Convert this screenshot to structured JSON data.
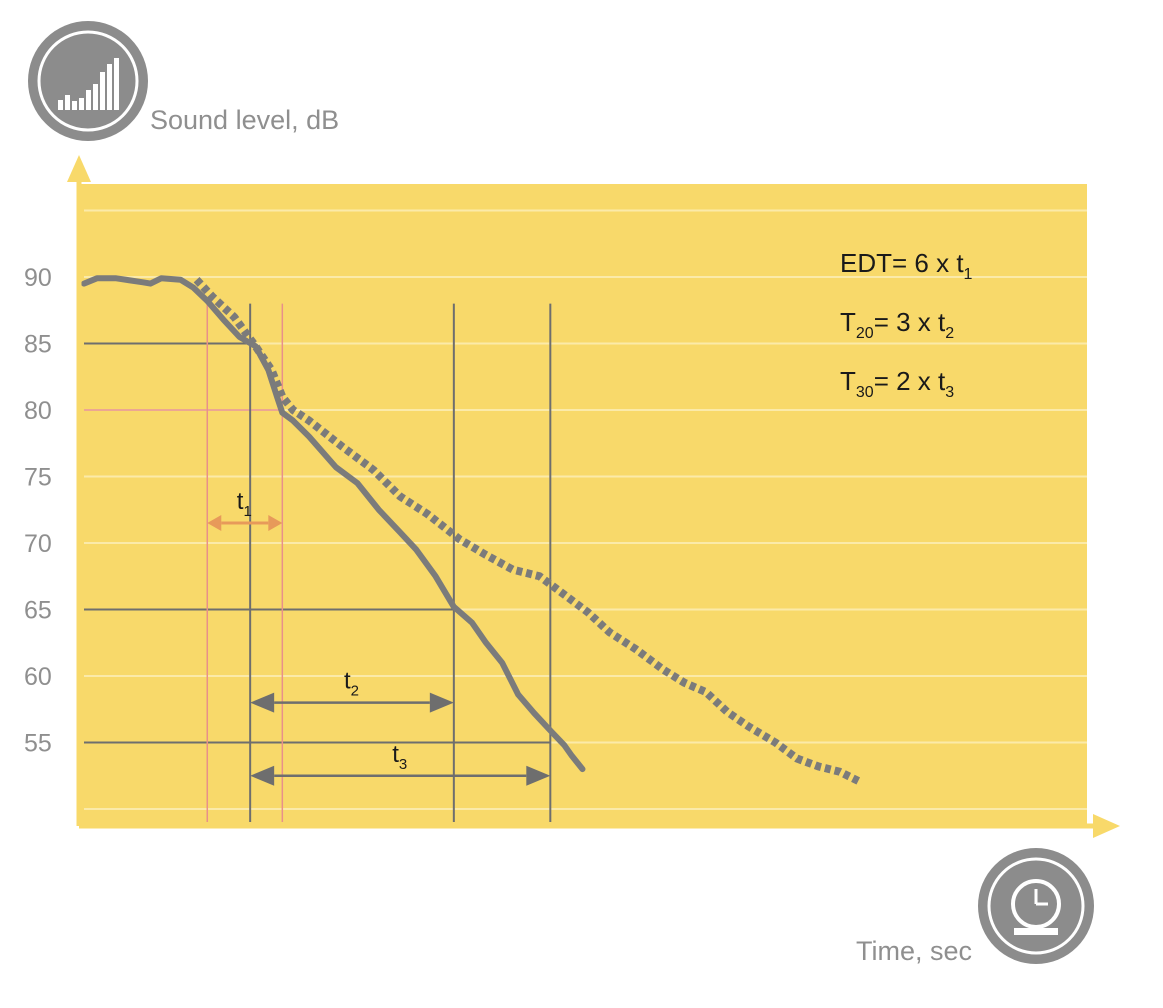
{
  "chart_data": {
    "type": "line",
    "ylabel": "Sound level, dB",
    "xlabel": "Time, sec",
    "y_ticks": [
      "90",
      "85",
      "80",
      "75",
      "70",
      "65",
      "60",
      "55"
    ],
    "ylim": [
      50,
      95
    ],
    "xlim": [
      0,
      7.5
    ],
    "grid": true,
    "colors": {
      "background": "#f8d96a",
      "grid": "#fbeaa9",
      "curve": "#7b7b7b",
      "axis": "#f8d96a",
      "reference_red": "#e8908a",
      "t1_arrow": "#e79a5a",
      "interval_arrow": "#6e6e6e",
      "label_gray": "#8f8f8f"
    },
    "series": [
      {
        "style": "solid",
        "x": [
          0,
          0.12,
          0.3,
          0.55,
          0.62,
          0.72,
          0.9,
          1.02,
          1.15,
          1.3,
          1.45,
          1.6,
          1.72,
          1.8,
          1.85,
          1.95,
          2.1,
          2.35,
          2.55,
          2.75,
          2.95,
          3.1,
          3.28,
          3.45,
          3.62,
          3.75,
          3.9,
          4.05,
          4.2,
          4.35,
          4.48,
          4.55,
          4.65
        ],
        "y": [
          89.5,
          89.9,
          89.9,
          89.6,
          89.5,
          89.9,
          89.8,
          89.2,
          88.2,
          86.8,
          85.5,
          84.8,
          83.0,
          81.0,
          79.8,
          79.2,
          78.0,
          75.7,
          74.5,
          72.5,
          70.8,
          69.5,
          67.5,
          65.2,
          64.0,
          62.5,
          61.0,
          58.6,
          57.2,
          55.9,
          54.8,
          54.0,
          53.0
        ]
      },
      {
        "style": "dashed",
        "x": [
          1.05,
          1.2,
          1.4,
          1.6,
          1.75,
          1.85,
          1.95,
          2.1,
          2.4,
          2.7,
          2.95,
          3.2,
          3.5,
          3.75,
          4.0,
          4.25,
          4.5,
          4.7,
          4.9,
          5.15,
          5.4,
          5.6,
          5.8,
          6.0,
          6.2,
          6.45,
          6.65,
          6.85,
          7.05,
          7.25
        ],
        "y": [
          89.8,
          88.5,
          87.0,
          84.8,
          83.0,
          81.0,
          80.0,
          79.2,
          77.3,
          75.5,
          73.5,
          72.2,
          70.3,
          69.1,
          68.0,
          67.5,
          66.0,
          64.8,
          63.3,
          62.0,
          60.5,
          59.5,
          58.8,
          57.3,
          56.2,
          55.0,
          53.8,
          53.2,
          52.8,
          52.0
        ]
      }
    ],
    "reference_levels": [
      {
        "y": 85,
        "x_end": 1.6,
        "color": "gray"
      },
      {
        "y": 80,
        "x_end": 1.85,
        "color": "red"
      },
      {
        "y": 65,
        "x_end": 3.45,
        "color": "gray"
      },
      {
        "y": 55,
        "x_end": 4.35,
        "color": "gray"
      }
    ],
    "interval_markers": [
      {
        "x": 1.15,
        "color": "red"
      },
      {
        "x": 1.55,
        "color": "gray"
      },
      {
        "x": 1.85,
        "color": "red"
      },
      {
        "x": 3.45,
        "color": "gray"
      },
      {
        "x": 4.35,
        "color": "gray"
      }
    ],
    "intervals": [
      {
        "main": "t",
        "sub": "1",
        "x_start": 1.15,
        "x_end": 1.85,
        "y": 71.5
      },
      {
        "main": "t",
        "sub": "2",
        "x_start": 1.55,
        "x_end": 3.45,
        "y": 58.0
      },
      {
        "main": "t",
        "sub": "3",
        "x_start": 1.55,
        "x_end": 4.35,
        "y": 52.5
      }
    ],
    "annotations": [
      {
        "main": "EDT",
        "sub": "",
        "rest": "= 6 x t",
        "rest_sub": "1"
      },
      {
        "main": "T",
        "sub": "20",
        "rest": "= 3 x t",
        "rest_sub": "2"
      },
      {
        "main": "T",
        "sub": "30",
        "rest": "= 2 x t",
        "rest_sub": "3"
      }
    ],
    "icons": {
      "y_axis": "sound-level-icon",
      "x_axis": "stopwatch-icon"
    }
  }
}
